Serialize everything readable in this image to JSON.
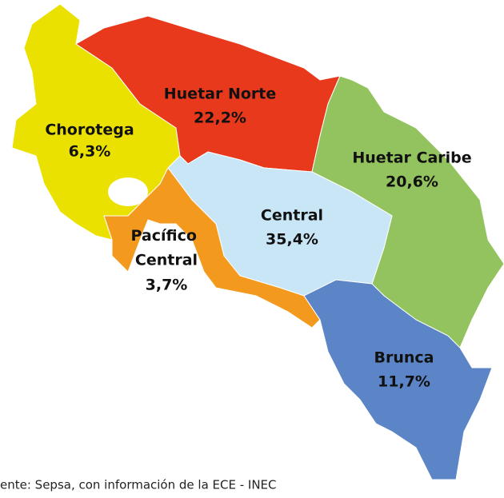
{
  "map": {
    "regions": [
      {
        "name": "Chorotega",
        "share": "6,3%"
      },
      {
        "name": "Huetar Norte",
        "share": "22,2%"
      },
      {
        "name": "Huetar Caribe",
        "share": "20,6%"
      },
      {
        "name": "Central",
        "share": "35,4%"
      },
      {
        "name": "Pacífico Central",
        "share": "3,7%"
      },
      {
        "name": "Brunca",
        "share": "11,7%"
      }
    ],
    "source": "ente: Sepsa, con información de la ECE - INEC"
  }
}
